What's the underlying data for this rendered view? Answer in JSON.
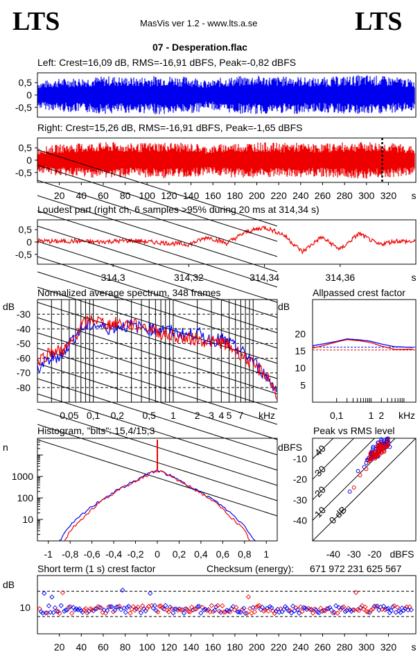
{
  "header": {
    "logo_left": "LTS",
    "logo_right": "LTS",
    "app_title": "MasVis ver 1.2 - www.lts.a.se",
    "file_name": "07 - Desperation.flac"
  },
  "colors": {
    "left": "#0000ee",
    "right": "#ee0000",
    "grid": "#000000"
  },
  "chart_data": [
    {
      "type": "area",
      "title": "Left: Crest=16,09 dB, RMS=-16,91 dBFS, Peak=-0,82 dBFS",
      "series": [
        {
          "name": "Left",
          "values": [
            0.55,
            0.62,
            0.68,
            0.7,
            0.72,
            0.75,
            0.78,
            0.74,
            0.72,
            0.76,
            0.8,
            0.78,
            0.75,
            0.73,
            0.55,
            0.7,
            0.74,
            0.78,
            0.8,
            0.76,
            0.75,
            0.78,
            0.72,
            0.7,
            0.74,
            0.77,
            0.8,
            0.82,
            0.78,
            0.75,
            0.7,
            0.6
          ]
        }
      ],
      "ylim": [
        -0.9,
        0.9
      ],
      "yticks": [
        "0,5",
        "0",
        "-0,5"
      ]
    },
    {
      "type": "area",
      "title": "Right: Crest=15,26 dB, RMS=-16,91 dBFS, Peak=-1,65 dBFS",
      "series": [
        {
          "name": "Right",
          "values": [
            0.5,
            0.6,
            0.66,
            0.68,
            0.7,
            0.72,
            0.74,
            0.7,
            0.68,
            0.72,
            0.74,
            0.73,
            0.7,
            0.68,
            0.55,
            0.66,
            0.7,
            0.72,
            0.74,
            0.72,
            0.7,
            0.72,
            0.68,
            0.66,
            0.7,
            0.72,
            0.74,
            0.75,
            0.72,
            0.7,
            0.66,
            0.55
          ]
        }
      ],
      "ylim": [
        -0.9,
        0.9
      ],
      "yticks": [
        "0,5",
        "0",
        "-0,5"
      ],
      "xticks": [
        "20",
        "40",
        "60",
        "80",
        "100",
        "120",
        "140",
        "160",
        "180",
        "200",
        "220",
        "240",
        "260",
        "280",
        "300",
        "320"
      ],
      "xunit": "s",
      "marker_x": 314.34
    },
    {
      "type": "line",
      "title": "Loudest part (right ch, 6 samples >95% during 20 ms at 314,34 s)",
      "xlim": [
        314.28,
        314.38
      ],
      "xticks": [
        "314,3",
        "314,32",
        "314,34",
        "314,36"
      ],
      "xunit": "s",
      "yticks": [
        "0,5",
        "0",
        "-0,5"
      ],
      "series": [
        {
          "name": "Right",
          "x": [
            314.28,
            314.285,
            314.29,
            314.295,
            314.3,
            314.305,
            314.31,
            314.315,
            314.32,
            314.325,
            314.33,
            314.335,
            314.34,
            314.345,
            314.35,
            314.355,
            314.36,
            314.365,
            314.37,
            314.375,
            314.38
          ],
          "values": [
            0.05,
            0.02,
            0.04,
            0.0,
            0.03,
            0.06,
            0.0,
            -0.05,
            -0.1,
            0.2,
            -0.05,
            0.4,
            0.6,
            0.3,
            -0.4,
            0.2,
            -0.3,
            0.35,
            -0.1,
            0.05,
            0.0
          ]
        }
      ]
    },
    {
      "type": "line",
      "title": "Normalized average spectrum, 348 frames",
      "ylabel": "dB",
      "xunit": "kHz",
      "yticks": [
        "-30",
        "-40",
        "-50",
        "-60",
        "-70",
        "-80"
      ],
      "xticks": [
        "0,05",
        "0,1",
        "0,2",
        "0,5",
        "1",
        "2",
        "3",
        "4",
        "5",
        "7"
      ],
      "series": [
        {
          "name": "Left",
          "x": [
            0.02,
            0.03,
            0.04,
            0.05,
            0.07,
            0.1,
            0.15,
            0.2,
            0.3,
            0.5,
            0.7,
            1,
            1.5,
            2,
            3,
            4,
            5,
            7,
            10,
            15,
            20
          ],
          "values": [
            -67,
            -60,
            -58,
            -50,
            -40,
            -37,
            -40,
            -38,
            -38,
            -40,
            -40,
            -42,
            -44,
            -43,
            -48,
            -47,
            -50,
            -55,
            -62,
            -73,
            -82
          ]
        },
        {
          "name": "Right",
          "x": [
            0.02,
            0.03,
            0.04,
            0.05,
            0.07,
            0.1,
            0.15,
            0.2,
            0.3,
            0.5,
            0.7,
            1,
            1.5,
            2,
            3,
            4,
            5,
            7,
            10,
            15,
            20
          ],
          "values": [
            -62,
            -55,
            -55,
            -52,
            -38,
            -33,
            -37,
            -36,
            -37,
            -39,
            -43,
            -45,
            -47,
            -47,
            -49,
            -49,
            -52,
            -57,
            -65,
            -72,
            -85
          ]
        }
      ]
    },
    {
      "type": "line",
      "title": "Allpassed crest factor",
      "ylabel": "dB",
      "xunit": "kHz",
      "yticks": [
        "20",
        "15",
        "10",
        "5"
      ],
      "xticks": [
        "0,1",
        "1",
        "2"
      ],
      "series": [
        {
          "name": "Left",
          "x": [
            0.02,
            0.05,
            0.1,
            0.2,
            0.5,
            1,
            2,
            5,
            20
          ],
          "values": [
            16.5,
            17.2,
            17.8,
            18.5,
            18.2,
            17.8,
            17.0,
            16.2,
            16.0
          ]
        },
        {
          "name": "Right",
          "x": [
            0.02,
            0.05,
            0.1,
            0.2,
            0.5,
            1,
            2,
            5,
            20
          ],
          "values": [
            15.8,
            16.8,
            17.6,
            18.3,
            17.9,
            17.4,
            16.4,
            15.4,
            15.5
          ]
        }
      ],
      "reference": {
        "left": 16.09,
        "right": 15.26
      }
    },
    {
      "type": "line",
      "title": "Histogram, \"bits\": 15,4/15,3",
      "ylabel": "n",
      "ylog": true,
      "yticks": [
        "1000",
        "100",
        "10"
      ],
      "xticks": [
        "-1",
        "-0,8",
        "-0,6",
        "-0,4",
        "-0,2",
        "0",
        "0,2",
        "0,4",
        "0,6",
        "0,8",
        "1"
      ],
      "xlim": [
        -1.1,
        1.1
      ],
      "series": [
        {
          "name": "Left",
          "x": [
            -0.9,
            -0.8,
            -0.7,
            -0.6,
            -0.5,
            -0.4,
            -0.3,
            -0.2,
            -0.1,
            0,
            0.1,
            0.2,
            0.3,
            0.4,
            0.5,
            0.6,
            0.7,
            0.8,
            0.9
          ],
          "values": [
            1,
            5,
            15,
            40,
            90,
            180,
            350,
            650,
            1200,
            2000,
            1200,
            650,
            350,
            180,
            90,
            40,
            15,
            5,
            1
          ]
        },
        {
          "name": "Right",
          "x": [
            -0.85,
            -0.8,
            -0.7,
            -0.6,
            -0.5,
            -0.4,
            -0.3,
            -0.2,
            -0.1,
            0,
            0.1,
            0.2,
            0.3,
            0.4,
            0.5,
            0.6,
            0.7,
            0.8,
            0.85
          ],
          "values": [
            1,
            3,
            10,
            30,
            80,
            170,
            330,
            620,
            1150,
            2000,
            1150,
            620,
            330,
            170,
            80,
            30,
            10,
            3,
            1
          ]
        }
      ]
    },
    {
      "type": "scatter",
      "title": "Peak vs RMS level",
      "ylabel": "dBFS",
      "xlabel": "dBFS",
      "xticks": [
        "-40",
        "-30",
        "-20"
      ],
      "yticks": [
        "-10",
        "-20",
        "-30",
        "-40"
      ],
      "diagonal_labels": [
        "40",
        "30",
        "20",
        "10",
        "0 dB"
      ],
      "series": [
        {
          "name": "Left",
          "x": [
            -32,
            -28,
            -25,
            -24,
            -22,
            -21,
            -20,
            -19,
            -18,
            -17,
            -16,
            -15,
            -14
          ],
          "values": [
            -26,
            -16,
            -14,
            -12,
            -9,
            -8,
            -7,
            -6,
            -5,
            -4,
            -3,
            -2,
            -3
          ]
        },
        {
          "name": "Right",
          "x": [
            -30,
            -27,
            -24,
            -23,
            -21,
            -20,
            -19,
            -18,
            -17,
            -16,
            -15
          ],
          "values": [
            -24,
            -18,
            -15,
            -11,
            -9,
            -8,
            -7,
            -6,
            -5,
            -4,
            -3
          ]
        }
      ]
    },
    {
      "type": "scatter",
      "title": "Short term (1 s) crest factor",
      "ylabel": "dB",
      "ytick": "10",
      "xticks": [
        "20",
        "40",
        "60",
        "80",
        "100",
        "120",
        "140",
        "160",
        "180",
        "200",
        "220",
        "240",
        "260",
        "280",
        "300",
        "320"
      ],
      "xunit": "s",
      "reference": {
        "left": 16.09,
        "right": 15.26
      }
    }
  ],
  "checksum": {
    "label": "Checksum (energy):",
    "value": "671 972 231 625 567"
  }
}
